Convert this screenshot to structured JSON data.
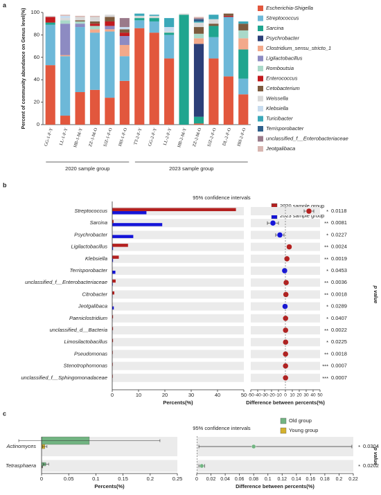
{
  "chart_data": [
    {
      "type": "stacked_bar",
      "panel": "a",
      "ylabel": "Percent of community abundance on Genus level(%)",
      "ylim": [
        0,
        100
      ],
      "yticks": [
        0,
        20,
        40,
        60,
        80,
        100
      ],
      "categories": [
        "GG-1-F-Y",
        "LL-1-F-Y",
        "HB-1-M-Y",
        "ZZ-1-M-O",
        "SJZ-1-F-O",
        "HH-1-F-O",
        "TT-2-F-Y",
        "GG-2-F-Y",
        "LL-2-F-Y",
        "HB-2-M-Y",
        "ZZ-2-M-O",
        "SJZ-2-F-O",
        "DL-2-F-O",
        "HH-2-F-O"
      ],
      "groups": [
        "2020 sample group",
        "2023 sample group"
      ],
      "series": [
        {
          "name": "Escherichia-Shigella",
          "color": "#e2573d",
          "values": [
            53,
            8,
            29,
            31,
            24,
            39,
            86,
            82,
            59,
            0,
            1,
            59,
            43,
            27
          ]
        },
        {
          "name": "Streptococcus",
          "color": "#6db8d8",
          "values": [
            36,
            53,
            58,
            51,
            59,
            22,
            7,
            10,
            21,
            0,
            0,
            19,
            53,
            14
          ]
        },
        {
          "name": "Sarcina",
          "color": "#1fa58f",
          "values": [
            2,
            0,
            0,
            0,
            0,
            0,
            2,
            3,
            2,
            98,
            6,
            10,
            0,
            26
          ]
        },
        {
          "name": "Psychrobacter",
          "color": "#2c3f78",
          "values": [
            0,
            0,
            0,
            0,
            0,
            0,
            0,
            0,
            0,
            0,
            65,
            0,
            0,
            0
          ]
        },
        {
          "name": "Clostridium_sensu_stricto_1",
          "color": "#f3a98a",
          "values": [
            0,
            1,
            0,
            3,
            2,
            10,
            0,
            0,
            0,
            0,
            5,
            0,
            0,
            10
          ]
        },
        {
          "name": "Ligilactobacillus",
          "color": "#8d8bc2",
          "values": [
            0,
            28,
            3,
            0,
            3,
            8,
            0,
            0,
            0,
            0,
            0,
            0,
            0,
            0
          ]
        },
        {
          "name": "Romboutsia",
          "color": "#a9d9c9",
          "values": [
            0,
            3,
            2,
            3,
            0,
            0,
            0,
            0,
            0,
            0,
            4,
            0,
            0,
            7
          ]
        },
        {
          "name": "Enterococcus",
          "color": "#c21a1e",
          "values": [
            5,
            0,
            0,
            2,
            4,
            3,
            0,
            0,
            0,
            0,
            0,
            0,
            1,
            0
          ]
        },
        {
          "name": "Cetobacterium",
          "color": "#7c5b3e",
          "values": [
            0,
            0,
            1,
            2,
            4,
            3,
            0,
            0,
            0,
            0,
            6,
            2,
            2,
            6
          ]
        },
        {
          "name": "Weissella",
          "color": "#d9d9d9",
          "values": [
            1,
            2,
            3,
            4,
            2,
            0,
            2,
            2,
            1,
            1,
            4,
            4,
            0,
            0
          ]
        },
        {
          "name": "Klebsiella",
          "color": "#c7dcef",
          "values": [
            0,
            2,
            0,
            0,
            0,
            2,
            0,
            0,
            4,
            0,
            0,
            0,
            0,
            0
          ]
        },
        {
          "name": "Turicibacter",
          "color": "#3aa8b9",
          "values": [
            0,
            0,
            0,
            0,
            0,
            0,
            2,
            1,
            8,
            0,
            1,
            4,
            0,
            2
          ]
        },
        {
          "name": "Terrisporobacter",
          "color": "#2f5f8b",
          "values": [
            0,
            0,
            0,
            0,
            0,
            0,
            0,
            0,
            0,
            0,
            2,
            0,
            0,
            0
          ]
        },
        {
          "name": "unclassified_f__Enterobacteriaceae",
          "color": "#9a7a8a",
          "values": [
            0,
            0,
            0,
            0,
            0,
            8,
            0,
            0,
            0,
            0,
            1,
            0,
            0,
            0
          ]
        },
        {
          "name": "Jeotgalibaca",
          "color": "#d8b6b1",
          "values": [
            0,
            1,
            1,
            1,
            0,
            0,
            0,
            0,
            0,
            0,
            1,
            0,
            0,
            0
          ]
        }
      ]
    },
    {
      "type": "extended_error_bar",
      "panel": "b",
      "xlabel": "Percents(%)",
      "xlim": [
        0,
        50
      ],
      "xticks": [
        0,
        10,
        20,
        30,
        40,
        50
      ],
      "categories": [
        "Streptococcus",
        "Sarcina",
        "Psychrobacter",
        "Ligilactobacillus",
        "Klebsiella",
        "Terrisporobacter",
        "unclassified_f__Enterobacteriaceae",
        "Citrobacter",
        "Jeotgalibaca",
        "Paeniclostridium",
        "unclassified_d__Bacteria",
        "Limosilactobacillus",
        "Pseudomonas",
        "Stenotrophomonas",
        "unclassified_f__Sphingomonadaceae"
      ],
      "series": [
        {
          "name": "2020 sample group",
          "color": "#b3201f",
          "values": [
            47,
            0.5,
            0,
            6,
            2.5,
            0.1,
            1.3,
            0.8,
            0.1,
            0.3,
            0.3,
            0.3,
            0.2,
            0.2,
            0.2
          ]
        },
        {
          "name": "2023 sample group",
          "color": "#1414d8",
          "values": [
            13,
            19,
            8,
            0.3,
            0.3,
            1.2,
            0.2,
            0.1,
            0.6,
            0.05,
            0.05,
            0,
            0,
            0,
            0
          ]
        }
      ],
      "ci_label": "95% confidence intervals",
      "diff_xlabel": "Difference between percents(%)",
      "diff_xlim": [
        -50,
        50
      ],
      "diff_xticks": [
        -50,
        -40,
        -30,
        -20,
        -10,
        0,
        10,
        20,
        30,
        40,
        50
      ],
      "diff": [
        34,
        -18,
        -8,
        5.5,
        2.2,
        -1.1,
        1.1,
        0.7,
        -0.5,
        0.25,
        0.25,
        0.3,
        0.2,
        0.2,
        0.2
      ],
      "ci_low": [
        27,
        -26,
        -14,
        2.5,
        0.8,
        -1.8,
        0.5,
        0.3,
        -0.9,
        0.1,
        0.1,
        0.1,
        0.05,
        0.1,
        0.1
      ],
      "ci_high": [
        41,
        -10,
        -2,
        8.5,
        3.6,
        -0.4,
        1.7,
        1.1,
        -0.1,
        0.4,
        0.4,
        0.5,
        0.35,
        0.3,
        0.3
      ],
      "significance": [
        "*",
        "**",
        "*",
        "**",
        "**",
        "*",
        "**",
        "**",
        "*",
        "*",
        "**",
        "*",
        "**",
        "***",
        "***"
      ],
      "p_values": [
        "0.0118",
        "0.0081",
        "0.0227",
        "0.0024",
        "0.0019",
        "0.0453",
        "0.0036",
        "0.0018",
        "0.0289",
        "0.0407",
        "0.0022",
        "0.0225",
        "0.0018",
        "0.0007",
        "0.0007"
      ],
      "p_label": "p value"
    },
    {
      "type": "extended_error_bar",
      "panel": "c",
      "xlabel": "Percents(%)",
      "xlim": [
        0,
        0.25
      ],
      "xticks": [
        0,
        0.05,
        0.1,
        0.15,
        0.2,
        0.25
      ],
      "categories": [
        "Actinomyces",
        "Tetrasphaera"
      ],
      "series": [
        {
          "name": "Old group",
          "color": "#72b482",
          "values": [
            0.088,
            0.008
          ],
          "errors": [
            0.13,
            0.005
          ]
        },
        {
          "name": "Young group",
          "color": "#d4b12c",
          "values": [
            0.006,
            0.001
          ],
          "errors": [
            0.004,
            0.001
          ]
        }
      ],
      "ci_label": "95% confidence intervals",
      "diff_xlabel": "Difference between percents(%)",
      "diff_xlim": [
        0,
        0.22
      ],
      "diff_xticks": [
        0,
        0.02,
        0.04,
        0.06,
        0.08,
        0.1,
        0.12,
        0.14,
        0.16,
        0.18,
        0.2,
        0.22
      ],
      "diff": [
        0.08,
        0.007
      ],
      "ci_low": [
        0.003,
        0.003
      ],
      "ci_high": [
        0.218,
        0.011
      ],
      "significance": [
        "*",
        "*"
      ],
      "p_values": [
        "0.0304",
        "0.0202"
      ],
      "p_label": "p value"
    }
  ]
}
